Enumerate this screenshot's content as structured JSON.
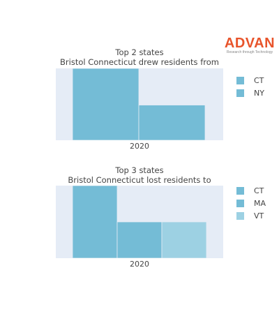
{
  "logo": {
    "word": "ADVAN",
    "tagline": "Research through Technology",
    "color": "#e8542b"
  },
  "chart_data": [
    {
      "type": "bar",
      "title": "Top 2 states",
      "subtitle": "Bristol Connecticut drew residents from",
      "categories": [
        "2020"
      ],
      "series": [
        {
          "name": "CT",
          "values": [
            100
          ],
          "color": "#74bcd6"
        },
        {
          "name": "NY",
          "values": [
            49
          ],
          "color": "#74bcd6"
        }
      ],
      "ylim": [
        0,
        100
      ],
      "legend_position": "right",
      "plot_bg": "#e5ecf6"
    },
    {
      "type": "bar",
      "title": "Top 3 states",
      "subtitle": "Bristol Connecticut lost residents to",
      "categories": [
        "2020"
      ],
      "series": [
        {
          "name": "CT",
          "values": [
            100
          ],
          "color": "#74bcd6"
        },
        {
          "name": "MA",
          "values": [
            50
          ],
          "color": "#74bcd6"
        },
        {
          "name": "VT",
          "values": [
            50
          ],
          "color": "#9dd1e3"
        }
      ],
      "ylim": [
        0,
        100
      ],
      "legend_position": "right",
      "plot_bg": "#e5ecf6"
    }
  ]
}
